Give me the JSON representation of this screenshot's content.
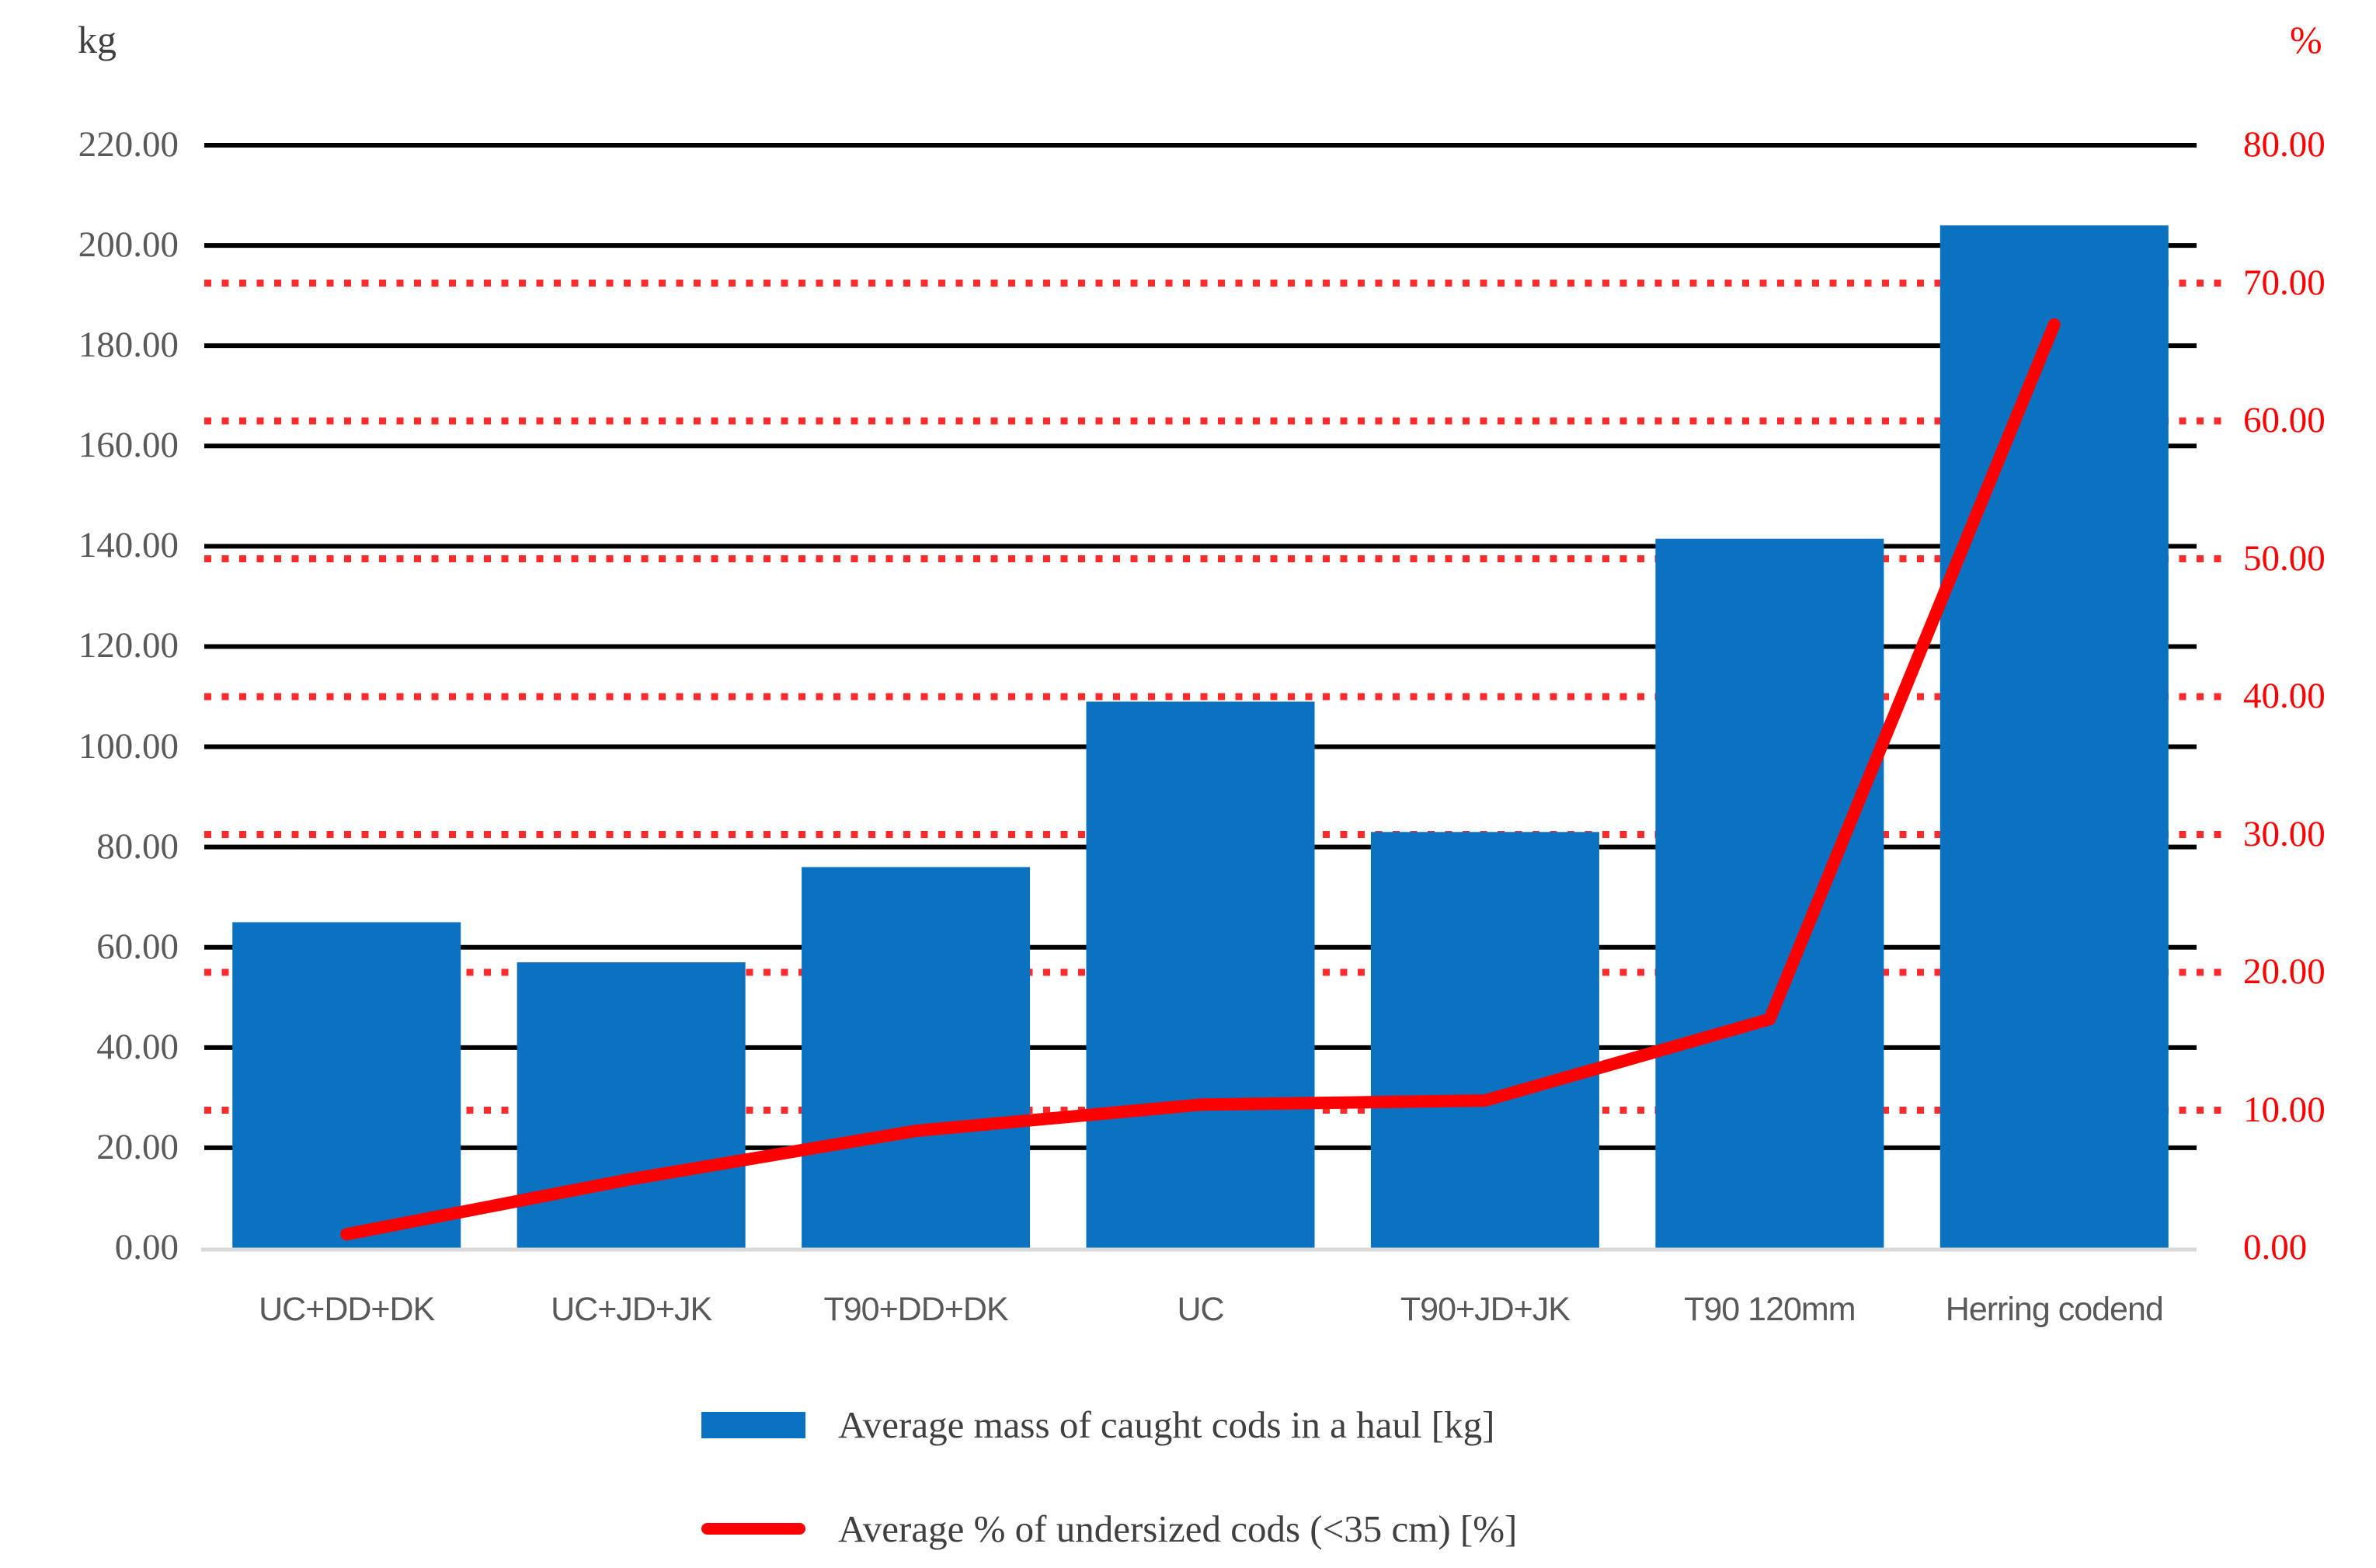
{
  "chart_data": {
    "type": "combo bar+line, dual y-axis",
    "categories": [
      "UC+DD+DK",
      "UC+JD+JK",
      "T90+DD+DK",
      "UC",
      "T90+JD+JK",
      "T90 120mm",
      "Herring codend"
    ],
    "series": [
      {
        "name": "Average mass of caught cods in a haul [kg]",
        "type": "bar",
        "axis": "left",
        "color": "#0b72c2",
        "values": [
          65,
          57,
          76,
          109,
          83,
          141.5,
          204
        ]
      },
      {
        "name": "Average % of undersized cods (<35 cm) [%]",
        "type": "line",
        "axis": "right",
        "color": "#fe0000",
        "values": [
          1.0,
          5.0,
          8.5,
          10.4,
          10.7,
          16.6,
          67.0
        ]
      }
    ],
    "left_axis": {
      "title": "kg",
      "min": 0,
      "max": 220,
      "step": 20,
      "tick_labels": [
        "220.00",
        "200.00",
        "180.00",
        "160.00",
        "140.00",
        "120.00",
        "100.00",
        "80.00",
        "60.00",
        "40.00",
        "20.00",
        "0.00"
      ],
      "label_color": "#595959",
      "gridline_color": "#000000",
      "gridline_style": "solid"
    },
    "right_axis": {
      "title": "%",
      "min": 0,
      "max": 80,
      "step": 10,
      "tick_labels": [
        "80.00",
        "70.00",
        "60.00",
        "50.00",
        "40.00",
        "30.00",
        "20.00",
        "10.00",
        "0.00"
      ],
      "label_color": "#fe0000",
      "gridline_color": "#fb2b2b",
      "gridline_style": "dotted",
      "dotted_gridlines_at": [
        10,
        20,
        30,
        40,
        50,
        60,
        70
      ]
    },
    "baseline_color": "#d9d9d9",
    "legend_position": "bottom",
    "grid_on": true
  }
}
